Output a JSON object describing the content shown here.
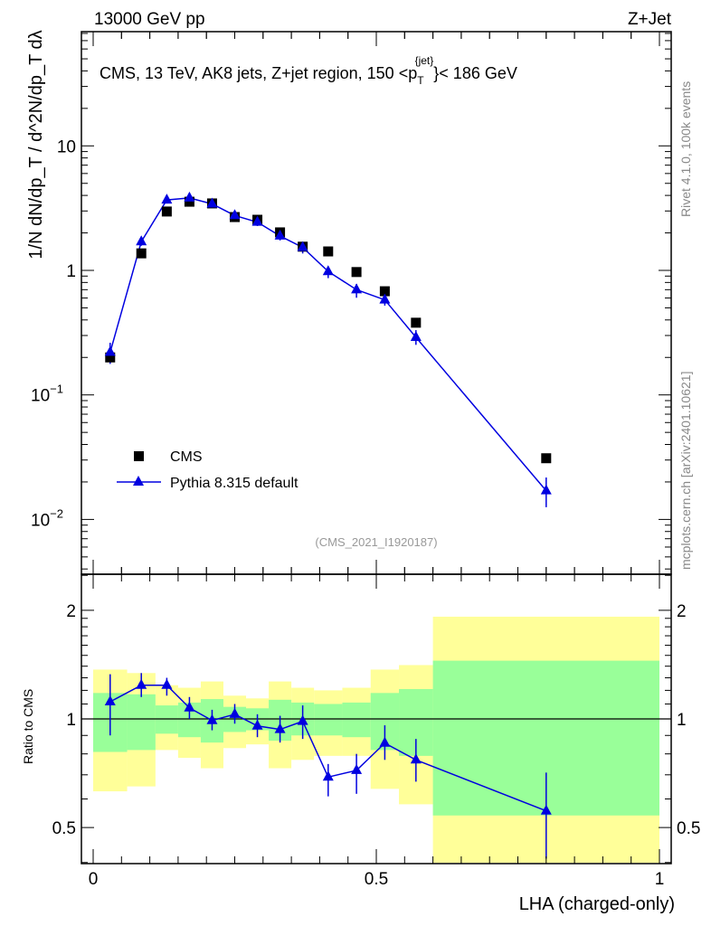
{
  "header": {
    "left": "13000 GeV pp",
    "right": "Z+Jet"
  },
  "side": {
    "rivet": "Rivet 4.1.0,  100k events",
    "mcplots": "mcplots.cern.ch [arXiv:2401.10621]"
  },
  "colors": {
    "data": "#000000",
    "mc": "#0000e0",
    "band_inner": "#99ff99",
    "band_outer": "#ffff99"
  },
  "chart_data": [
    {
      "type": "scatter",
      "title": "CMS, 13 TeV, AK8 jets, Z+jet region, 150 <p_T^{jet}< 186 GeV",
      "title_parts": {
        "a": "CMS, 13 TeV, AK8 jets, Z+jet region, 150 <p",
        "sup": "{jet}",
        "sub": "T",
        "b": "}< 186 GeV"
      },
      "ylabel": "1/N dN/dp_T / d^2N/dp_T dλ",
      "yscale": "log",
      "ylim": [
        0.0036,
        83
      ],
      "xlim": [
        -0.02,
        1.02
      ],
      "ytick_labels": [
        {
          "v": 10,
          "t": "10"
        },
        {
          "v": 1,
          "t": "1"
        },
        {
          "v": 0.1,
          "t": "10",
          "e": "−1"
        },
        {
          "v": 0.01,
          "t": "10",
          "e": "−2"
        }
      ],
      "annotation": "(CMS_2021_I1920187)",
      "legend_position": "bottom-left",
      "x": [
        0.03,
        0.085,
        0.13,
        0.17,
        0.21,
        0.25,
        0.29,
        0.33,
        0.37,
        0.415,
        0.465,
        0.515,
        0.57,
        0.8
      ],
      "series": [
        {
          "name": "CMS",
          "values": [
            0.2,
            1.37,
            2.97,
            3.56,
            3.45,
            2.68,
            2.55,
            2.02,
            1.55,
            1.42,
            0.97,
            0.68,
            0.38,
            0.031
          ]
        },
        {
          "name": "Pythia 8.315 default",
          "values": [
            0.22,
            1.7,
            3.68,
            3.82,
            3.42,
            2.76,
            2.44,
            1.89,
            1.53,
            0.98,
            0.7,
            0.58,
            0.29,
            0.017
          ]
        }
      ]
    },
    {
      "type": "line",
      "ylabel": "Ratio to CMS",
      "xlabel": "LHA (charged-only)",
      "yscale": "log",
      "ylim": [
        0.397,
        2.52
      ],
      "ytick_labels": [
        {
          "v": 2,
          "t": "2"
        },
        {
          "v": 1,
          "t": "1"
        },
        {
          "v": 0.5,
          "t": "0.5"
        }
      ],
      "xtick_labels": [
        {
          "v": 0,
          "t": "0"
        },
        {
          "v": 0.5,
          "t": "0.5"
        },
        {
          "v": 1,
          "t": "1"
        }
      ],
      "bin_edges": [
        0,
        0.06,
        0.11,
        0.15,
        0.19,
        0.23,
        0.27,
        0.31,
        0.35,
        0.39,
        0.44,
        0.49,
        0.54,
        0.6,
        1.0
      ],
      "band_outer": [
        [
          0.63,
          1.37
        ],
        [
          0.65,
          1.34
        ],
        [
          0.82,
          1.24
        ],
        [
          0.78,
          1.22
        ],
        [
          0.73,
          1.27
        ],
        [
          0.83,
          1.16
        ],
        [
          0.85,
          1.14
        ],
        [
          0.73,
          1.27
        ],
        [
          0.77,
          1.22
        ],
        [
          0.79,
          1.2
        ],
        [
          0.79,
          1.22
        ],
        [
          0.64,
          1.37
        ],
        [
          0.58,
          1.41
        ],
        [
          0.3,
          1.92
        ]
      ],
      "band_inner": [
        [
          0.81,
          1.18
        ],
        [
          0.82,
          1.17
        ],
        [
          0.91,
          1.09
        ],
        [
          0.89,
          1.11
        ],
        [
          0.86,
          1.135
        ],
        [
          0.92,
          1.08
        ],
        [
          0.93,
          1.07
        ],
        [
          0.87,
          1.13
        ],
        [
          0.9,
          1.11
        ],
        [
          0.9,
          1.1
        ],
        [
          0.89,
          1.11
        ],
        [
          0.82,
          1.18
        ],
        [
          0.79,
          1.21
        ],
        [
          0.54,
          1.45
        ]
      ],
      "ratio": [
        1.116,
        1.24,
        1.24,
        1.073,
        0.99,
        1.03,
        0.956,
        0.935,
        0.985,
        0.69,
        0.72,
        0.857,
        0.77,
        0.556
      ],
      "ratio_err": [
        [
          0.9,
          1.33
        ],
        [
          1.15,
          1.34
        ],
        [
          1.16,
          1.3
        ],
        [
          1.0,
          1.15
        ],
        [
          0.93,
          1.06
        ],
        [
          0.97,
          1.1
        ],
        [
          0.89,
          1.03
        ],
        [
          0.86,
          1.02
        ],
        [
          0.88,
          1.09
        ],
        [
          0.61,
          0.75
        ],
        [
          0.62,
          0.8
        ],
        [
          0.77,
          0.96
        ],
        [
          0.67,
          0.88
        ],
        [
          0.41,
          0.71
        ]
      ]
    }
  ]
}
